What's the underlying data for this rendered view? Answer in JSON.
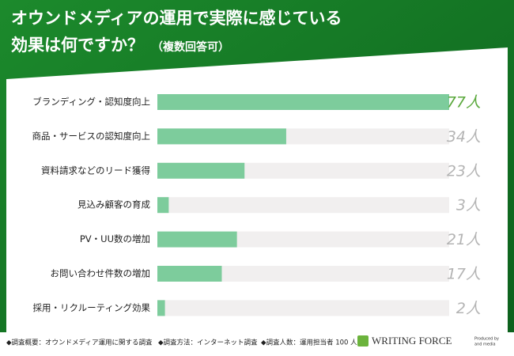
{
  "chart_data": {
    "type": "bar",
    "orientation": "horizontal",
    "title": [
      "オウンドメディアの運用で実際に感じている",
      "効果は何ですか？"
    ],
    "subtitle": "（複数回答可）",
    "categories": [
      "ブランディング・認知度向上",
      "商品・サービスの認知度向上",
      "資料請求などのリード獲得",
      "見込み顧客の育成",
      "PV・UU数の増加",
      "お問い合わせ件数の増加",
      "採用・リクルーティング効果"
    ],
    "values": [
      77,
      34,
      23,
      3,
      21,
      17,
      2
    ],
    "value_labels": [
      "77人",
      "34人",
      "23人",
      "3人",
      "21人",
      "17人",
      "2人"
    ],
    "xlim": [
      0,
      77
    ],
    "color": "#7dcc9c",
    "track_color": "#f1efef",
    "highlight_color": "#5aa83c",
    "label_color": "#b4b4b4",
    "notes": [
      "◆調査概要：オウンドメディア運用に関する調査",
      "◆調査方法：インターネット調査",
      "◆調査人数：運用担当者 100 人"
    ],
    "logo": {
      "name": "WRITING FORCE",
      "credit": [
        "Produced by",
        "and media"
      ]
    }
  }
}
